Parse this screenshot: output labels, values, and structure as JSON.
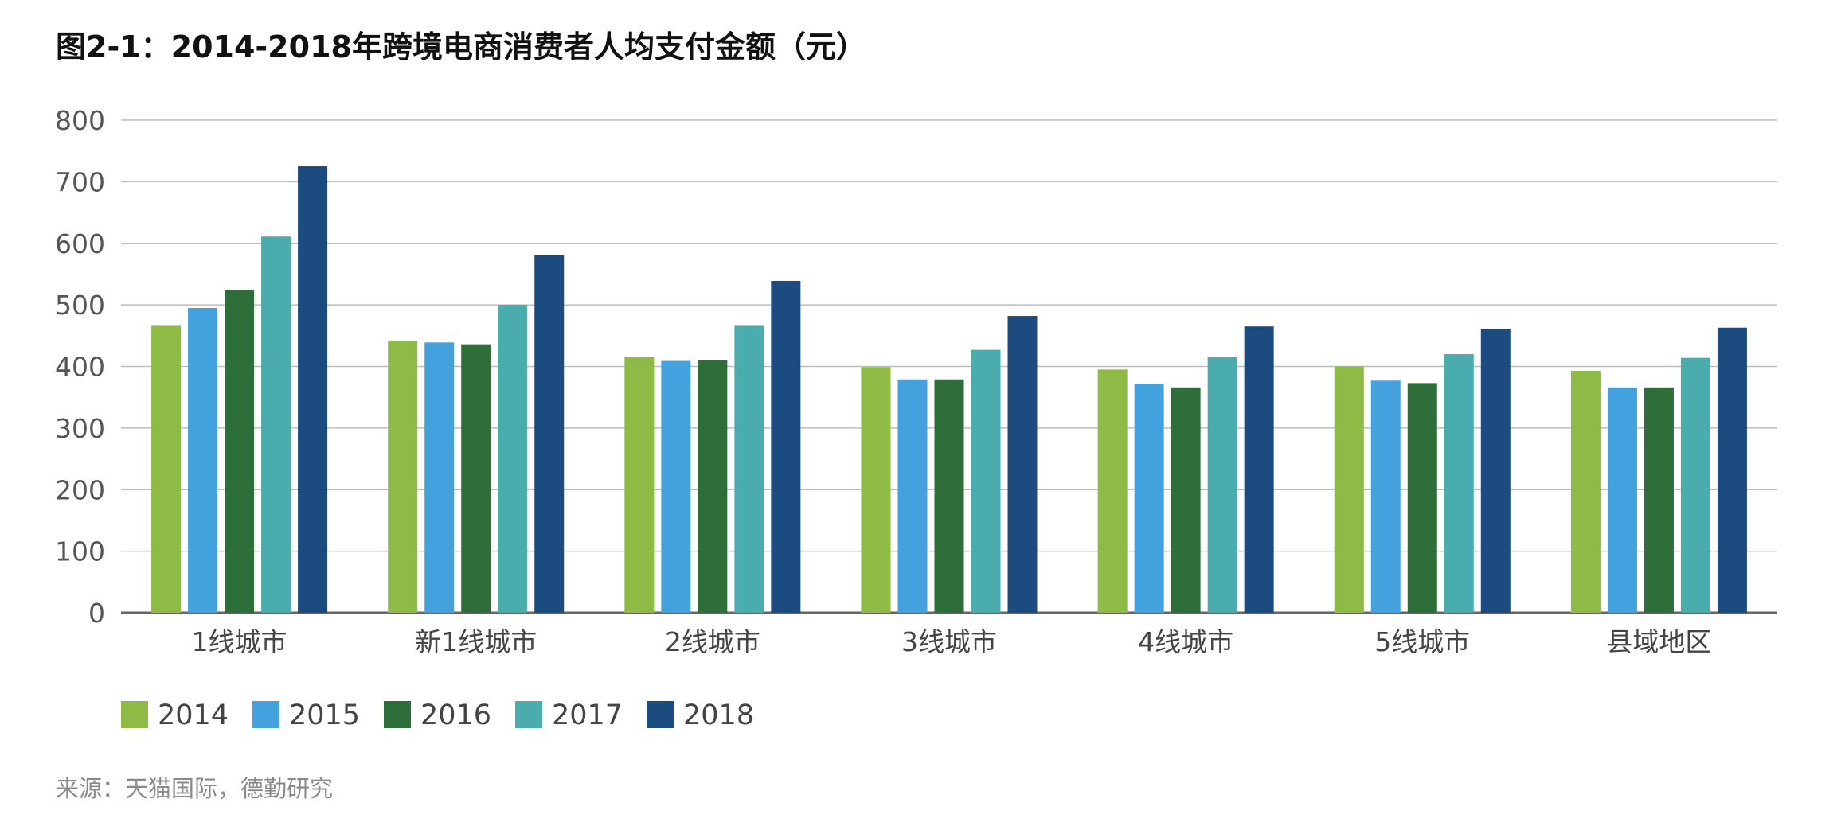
{
  "chart_data": {
    "type": "bar",
    "title": "图2-1：2014-2018年跨境电商消费者人均支付金额（元）",
    "categories": [
      "1线城市",
      "新1线城市",
      "2线城市",
      "3线城市",
      "4线城市",
      "5线城市",
      "县域地区"
    ],
    "series": [
      {
        "name": "2014",
        "color": "#8dbb45",
        "values": [
          466,
          442,
          415,
          399,
          395,
          400,
          393
        ]
      },
      {
        "name": "2015",
        "color": "#43a2dd",
        "values": [
          495,
          439,
          409,
          379,
          372,
          377,
          366
        ]
      },
      {
        "name": "2016",
        "color": "#2d6e39",
        "values": [
          524,
          436,
          410,
          379,
          366,
          373,
          366
        ]
      },
      {
        "name": "2017",
        "color": "#4bacad",
        "values": [
          611,
          500,
          466,
          427,
          415,
          420,
          414
        ]
      },
      {
        "name": "2018",
        "color": "#1b4b7f",
        "values": [
          725,
          581,
          539,
          482,
          465,
          461,
          463
        ]
      }
    ],
    "ylim": [
      0,
      800
    ],
    "yticks": [
      0,
      100,
      200,
      300,
      400,
      500,
      600,
      700,
      800
    ],
    "grid": true,
    "legend": "bottom-left"
  },
  "footer": {
    "source": "来源：天猫国际，德勤研究"
  }
}
